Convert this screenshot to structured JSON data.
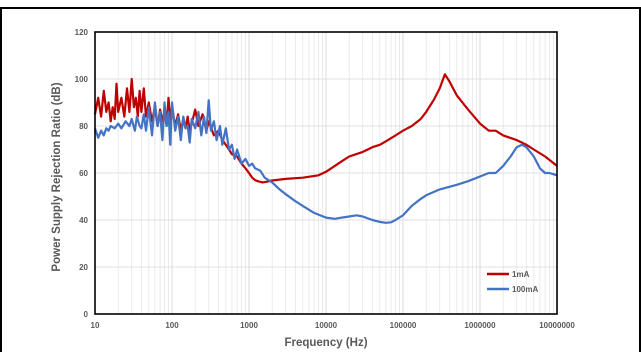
{
  "chart_data": {
    "type": "line",
    "xlabel": "Frequency (Hz)",
    "ylabel": "Power Supply Rejection Ratio (dB)",
    "xscale": "log",
    "xlim": [
      10,
      10000000
    ],
    "ylim": [
      0,
      120
    ],
    "xticks": [
      10,
      100,
      1000,
      10000,
      100000,
      1000000,
      10000000
    ],
    "xtick_labels": [
      "10",
      "100",
      "1000",
      "10000",
      "100000",
      "1000000",
      "10000000"
    ],
    "yticks": [
      0,
      20,
      40,
      60,
      80,
      100,
      120
    ],
    "ytick_labels": [
      "0",
      "20",
      "40",
      "60",
      "80",
      "100",
      "120"
    ],
    "grid": "vertical log minor + horizontal major",
    "legend_position": "bottom-right",
    "series": [
      {
        "name": "1mA",
        "color": "#c00000",
        "points": [
          [
            10,
            85
          ],
          [
            11,
            92
          ],
          [
            12,
            84
          ],
          [
            13,
            95
          ],
          [
            14,
            86
          ],
          [
            15,
            90
          ],
          [
            16,
            82
          ],
          [
            17,
            88
          ],
          [
            18,
            83
          ],
          [
            19,
            98
          ],
          [
            20,
            86
          ],
          [
            22,
            92
          ],
          [
            24,
            84
          ],
          [
            26,
            96
          ],
          [
            28,
            86
          ],
          [
            30,
            100
          ],
          [
            32,
            88
          ],
          [
            34,
            92
          ],
          [
            36,
            84
          ],
          [
            38,
            95
          ],
          [
            40,
            86
          ],
          [
            43,
            96
          ],
          [
            46,
            84
          ],
          [
            50,
            90
          ],
          [
            55,
            82
          ],
          [
            60,
            88
          ],
          [
            65,
            80
          ],
          [
            70,
            87
          ],
          [
            75,
            82
          ],
          [
            80,
            86
          ],
          [
            85,
            80
          ],
          [
            90,
            92
          ],
          [
            95,
            82
          ],
          [
            100,
            88
          ],
          [
            110,
            80
          ],
          [
            120,
            85
          ],
          [
            130,
            78
          ],
          [
            140,
            83
          ],
          [
            150,
            79
          ],
          [
            160,
            84
          ],
          [
            170,
            78
          ],
          [
            180,
            81
          ],
          [
            200,
            87
          ],
          [
            220,
            80
          ],
          [
            250,
            85
          ],
          [
            280,
            78
          ],
          [
            300,
            82
          ],
          [
            350,
            76
          ],
          [
            400,
            78
          ],
          [
            450,
            74
          ],
          [
            500,
            72
          ],
          [
            550,
            70
          ],
          [
            600,
            68
          ],
          [
            700,
            67
          ],
          [
            800,
            64
          ],
          [
            900,
            62
          ],
          [
            1000,
            60
          ],
          [
            1100,
            58
          ],
          [
            1200,
            57
          ],
          [
            1300,
            56.5
          ],
          [
            1500,
            56
          ],
          [
            1700,
            56.3
          ],
          [
            2000,
            56.8
          ],
          [
            3000,
            57.5
          ],
          [
            5000,
            58
          ],
          [
            8000,
            59
          ],
          [
            10000,
            60.5
          ],
          [
            13000,
            63
          ],
          [
            16000,
            65
          ],
          [
            20000,
            67
          ],
          [
            30000,
            69
          ],
          [
            40000,
            71
          ],
          [
            50000,
            72
          ],
          [
            60000,
            73.5
          ],
          [
            80000,
            76
          ],
          [
            100000,
            78
          ],
          [
            130000,
            80
          ],
          [
            170000,
            83
          ],
          [
            200000,
            86
          ],
          [
            250000,
            91
          ],
          [
            300000,
            96
          ],
          [
            350000,
            102
          ],
          [
            400000,
            99
          ],
          [
            500000,
            93
          ],
          [
            700000,
            87
          ],
          [
            1000000,
            81
          ],
          [
            1300000,
            78
          ],
          [
            1600000,
            78
          ],
          [
            2000000,
            76
          ],
          [
            3000000,
            74
          ],
          [
            4000000,
            72
          ],
          [
            5000000,
            70
          ],
          [
            7000000,
            67
          ],
          [
            10000000,
            63
          ]
        ]
      },
      {
        "name": "100mA",
        "color": "#4472c4",
        "points": [
          [
            10,
            79
          ],
          [
            11,
            75
          ],
          [
            12,
            78
          ],
          [
            13,
            76
          ],
          [
            14,
            79
          ],
          [
            15,
            78
          ],
          [
            16,
            80
          ],
          [
            18,
            79
          ],
          [
            20,
            81
          ],
          [
            22,
            79
          ],
          [
            25,
            82
          ],
          [
            28,
            80
          ],
          [
            30,
            83
          ],
          [
            33,
            78
          ],
          [
            35,
            84
          ],
          [
            38,
            80
          ],
          [
            40,
            79
          ],
          [
            43,
            85
          ],
          [
            46,
            78
          ],
          [
            50,
            88
          ],
          [
            55,
            76
          ],
          [
            60,
            90
          ],
          [
            65,
            80
          ],
          [
            70,
            86
          ],
          [
            75,
            74
          ],
          [
            80,
            90
          ],
          [
            85,
            80
          ],
          [
            90,
            86
          ],
          [
            95,
            72
          ],
          [
            100,
            90
          ],
          [
            110,
            78
          ],
          [
            120,
            84
          ],
          [
            130,
            74
          ],
          [
            140,
            84
          ],
          [
            150,
            79
          ],
          [
            160,
            80
          ],
          [
            170,
            73
          ],
          [
            180,
            83
          ],
          [
            200,
            79
          ],
          [
            220,
            86
          ],
          [
            240,
            76
          ],
          [
            260,
            84
          ],
          [
            280,
            77
          ],
          [
            300,
            91
          ],
          [
            320,
            78
          ],
          [
            350,
            82
          ],
          [
            380,
            74
          ],
          [
            420,
            80
          ],
          [
            450,
            72
          ],
          [
            500,
            79
          ],
          [
            550,
            70
          ],
          [
            600,
            72
          ],
          [
            650,
            66
          ],
          [
            700,
            70
          ],
          [
            800,
            64
          ],
          [
            900,
            66
          ],
          [
            1000,
            63
          ],
          [
            1100,
            64
          ],
          [
            1200,
            62
          ],
          [
            1400,
            61
          ],
          [
            1600,
            58
          ],
          [
            2000,
            56
          ],
          [
            2500,
            53
          ],
          [
            3000,
            51
          ],
          [
            4000,
            48
          ],
          [
            5000,
            46
          ],
          [
            7000,
            43
          ],
          [
            10000,
            41
          ],
          [
            13000,
            40.5
          ],
          [
            16000,
            41
          ],
          [
            20000,
            41.5
          ],
          [
            25000,
            42
          ],
          [
            30000,
            41.5
          ],
          [
            40000,
            40
          ],
          [
            50000,
            39.2
          ],
          [
            60000,
            38.8
          ],
          [
            70000,
            39
          ],
          [
            80000,
            40
          ],
          [
            100000,
            42
          ],
          [
            130000,
            46
          ],
          [
            170000,
            49
          ],
          [
            200000,
            50.5
          ],
          [
            300000,
            53
          ],
          [
            500000,
            55
          ],
          [
            700000,
            56.5
          ],
          [
            1000000,
            58.5
          ],
          [
            1300000,
            60
          ],
          [
            1600000,
            60
          ],
          [
            2000000,
            63
          ],
          [
            2500000,
            67
          ],
          [
            3000000,
            71
          ],
          [
            3500000,
            72
          ],
          [
            4000000,
            71
          ],
          [
            5000000,
            67
          ],
          [
            6000000,
            62
          ],
          [
            7000000,
            60
          ],
          [
            8000000,
            60
          ],
          [
            9000000,
            59.5
          ],
          [
            10000000,
            59
          ]
        ]
      }
    ]
  }
}
